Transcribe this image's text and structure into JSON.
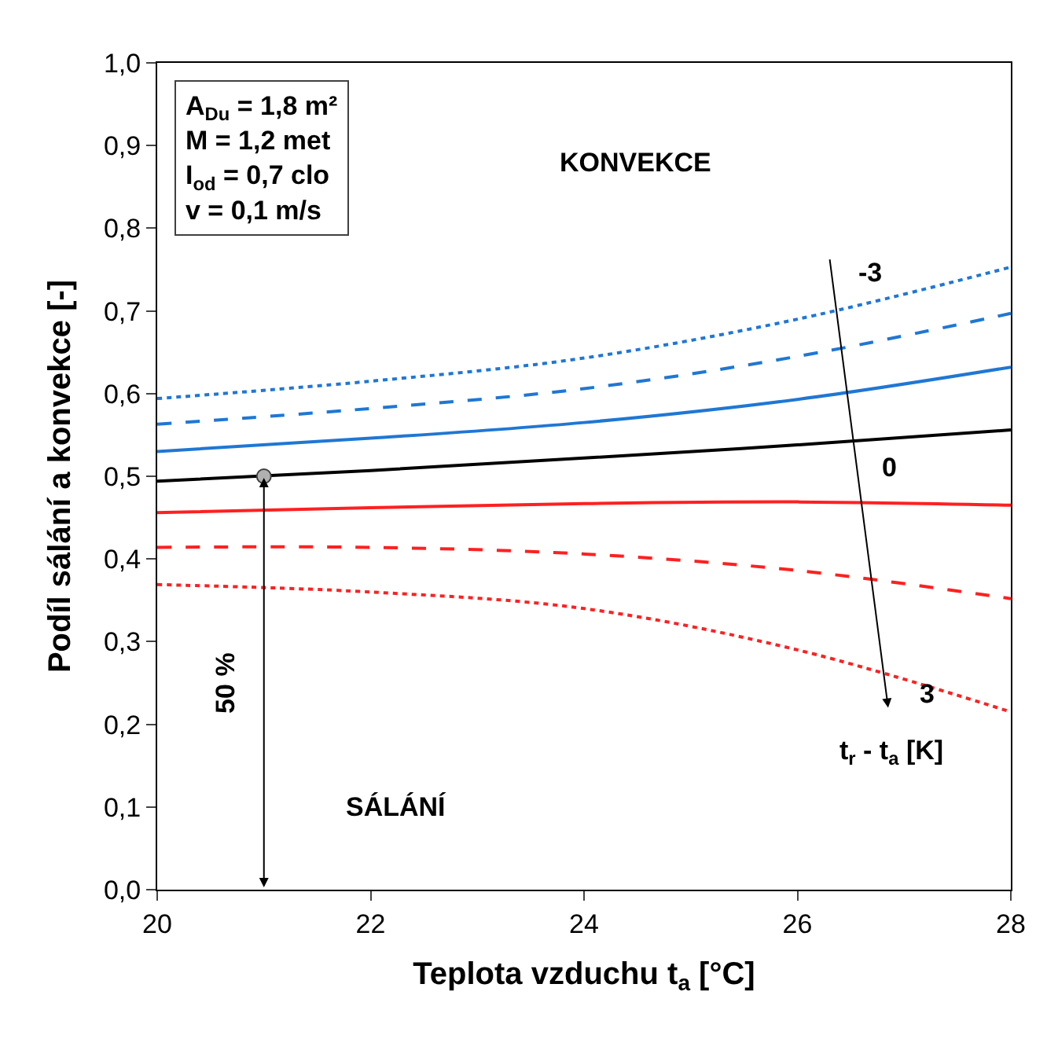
{
  "chart_data": {
    "type": "line",
    "xlabel": "Teplota vzduchu t$_{a}$ [°C]",
    "ylabel": "Podíl sálání a konvekce [-]",
    "x": [
      20,
      22,
      24,
      26,
      28
    ],
    "series": [
      {
        "color": "#1f77d4",
        "line_style": "dotted",
        "values": [
          0.594,
          0.615,
          0.643,
          0.69,
          0.753
        ]
      },
      {
        "color": "#1f77d4",
        "line_style": "dashed",
        "values": [
          0.563,
          0.582,
          0.606,
          0.645,
          0.697
        ]
      },
      {
        "color": "#1f77d4",
        "line_style": "solid",
        "values": [
          0.53,
          0.546,
          0.565,
          0.593,
          0.632
        ]
      },
      {
        "color": "#000000",
        "line_style": "solid",
        "values": [
          0.494,
          0.507,
          0.522,
          0.538,
          0.556
        ]
      },
      {
        "color": "#ff2020",
        "line_style": "solid",
        "values": [
          0.456,
          0.462,
          0.467,
          0.469,
          0.465
        ]
      },
      {
        "color": "#ff2020",
        "line_style": "dashed",
        "values": [
          0.414,
          0.414,
          0.406,
          0.386,
          0.352
        ]
      },
      {
        "color": "#ff2020",
        "line_style": "dotted",
        "values": [
          0.369,
          0.36,
          0.34,
          0.29,
          0.215
        ]
      },
      {
        "type": "scatter",
        "marker": "circle",
        "color": "#b0b0b0",
        "x": [
          21
        ],
        "values": [
          0.5
        ]
      }
    ],
    "xlim": [
      20,
      28
    ],
    "xticks": [
      20,
      22,
      24,
      26,
      28
    ],
    "ylim": [
      0,
      1
    ],
    "yticks": [
      {
        "value": 0,
        "label": "0,0"
      },
      {
        "value": 0.1,
        "label": "0,1"
      },
      {
        "value": 0.2,
        "label": "0,2"
      },
      {
        "value": 0.3,
        "label": "0,3"
      },
      {
        "value": 0.4,
        "label": "0,4"
      },
      {
        "value": 0.5,
        "label": "0,5"
      },
      {
        "value": 0.6,
        "label": "0,6"
      },
      {
        "value": 0.7,
        "label": "0,7"
      },
      {
        "value": 0.8,
        "label": "0,8"
      },
      {
        "value": 0.9,
        "label": "0,9"
      },
      {
        "value": 1,
        "label": "1,0"
      }
    ],
    "marker": "none",
    "annotations": [
      "A$_{Du}$ = 1,8 m²\nM = 1,2 met\nI$_{od}$ = 0,7 clo\nv = 0,1 m/s",
      "KONVEKCE",
      "SÁLÁNÍ",
      "50 %",
      "t$_{r}$ - t$_{a}$ [K]",
      {
        "text": "-3",
        "x": 26.45,
        "y": 0.7
      },
      {
        "text": "0",
        "x": 26.65,
        "y": 0.54
      },
      {
        "text": "3",
        "x": 27.0,
        "y": 0.255
      }
    ]
  }
}
